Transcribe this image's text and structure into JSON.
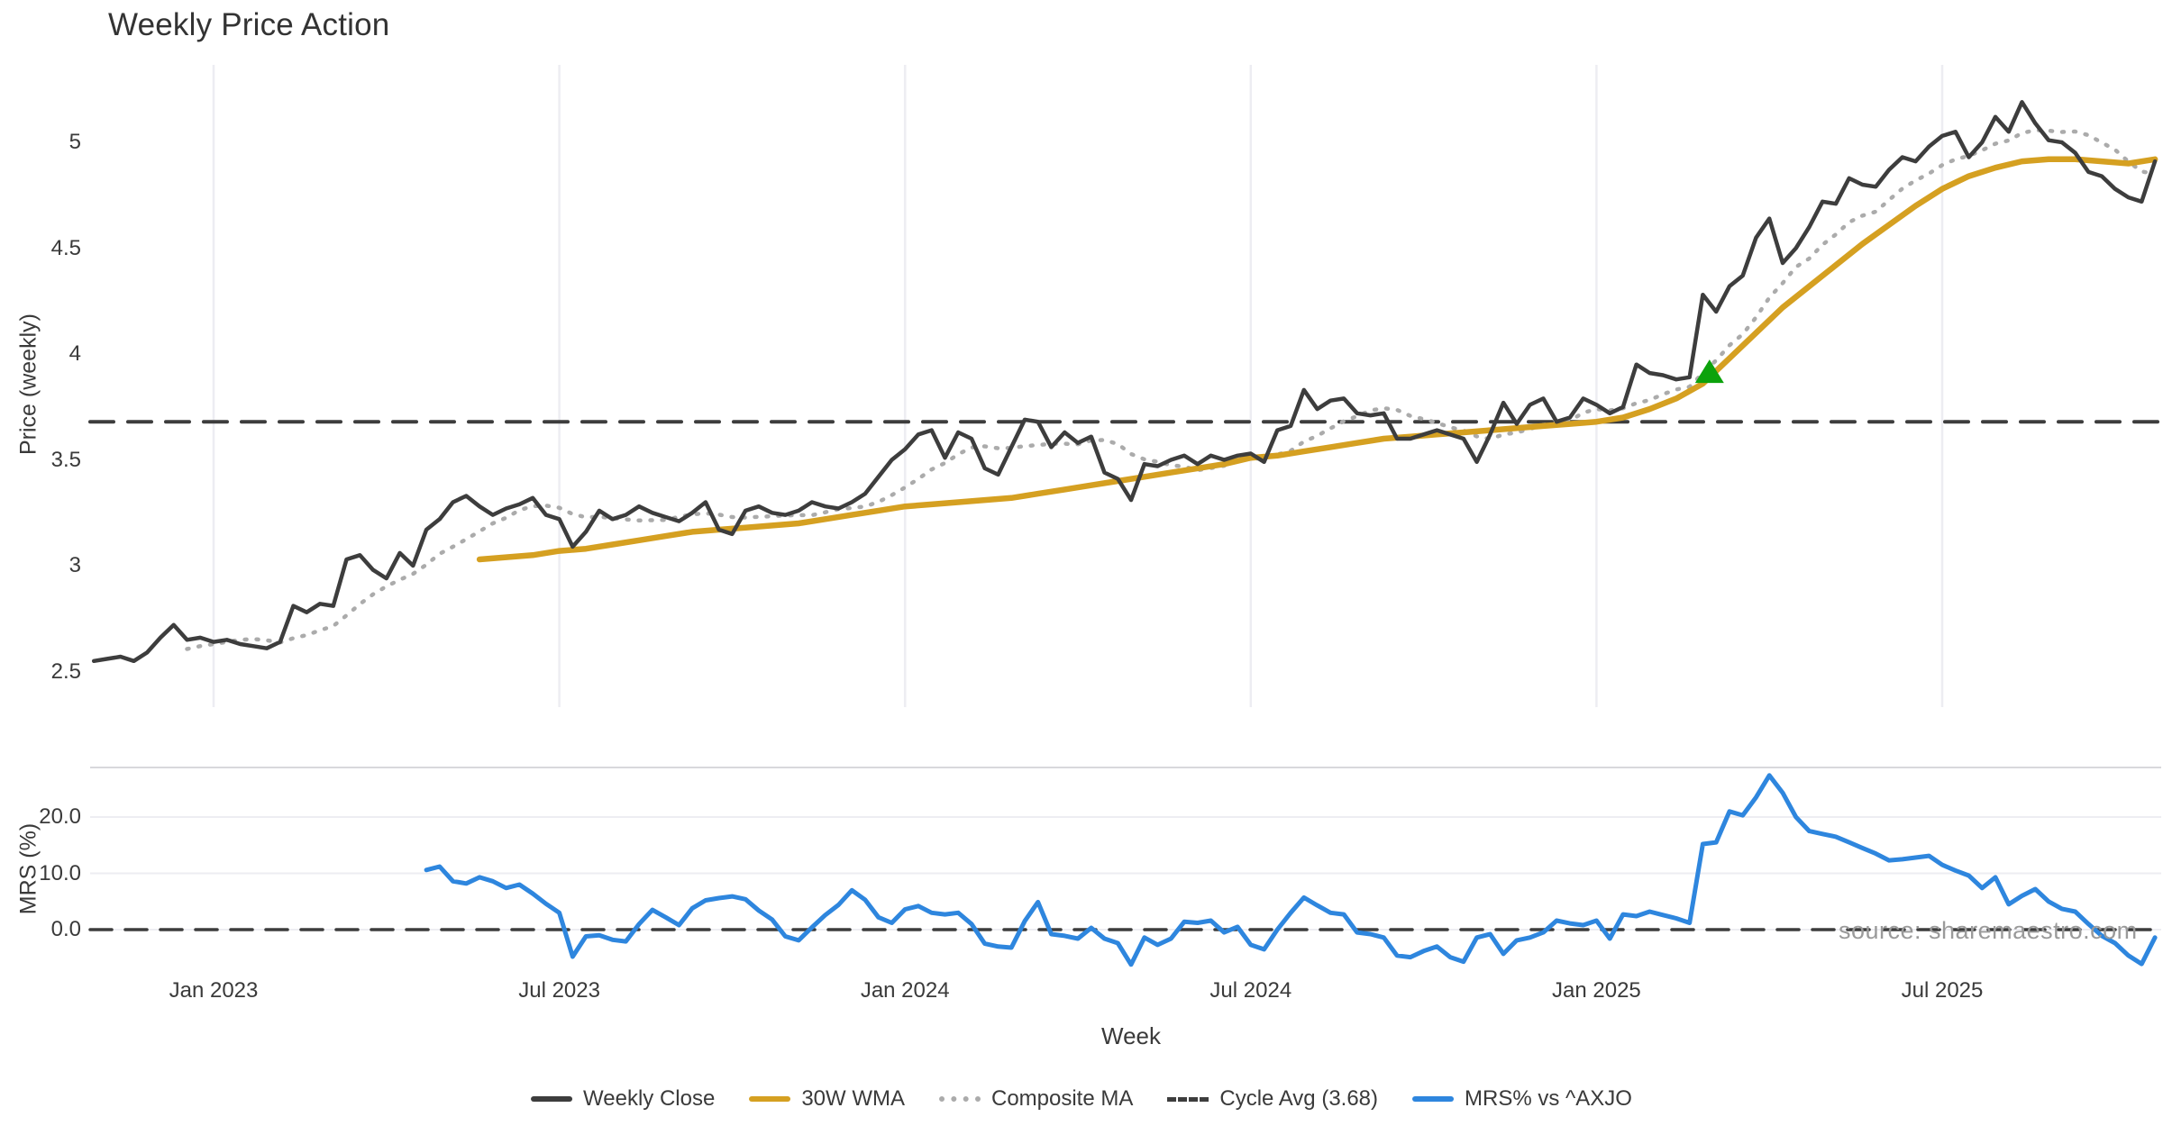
{
  "title": "Weekly Price Action",
  "watermark": "source: sharemaestro.com",
  "axes": {
    "price_label": "Price (weekly)",
    "mrs_label": "MRS (%)",
    "x_label": "Week",
    "price_ticks": [
      "5",
      "4.5",
      "4",
      "3.5",
      "3",
      "2.5"
    ],
    "price_tick_values": [
      5,
      4.5,
      4,
      3.5,
      3,
      2.5
    ],
    "mrs_ticks": [
      "20.0",
      "10.0",
      "0.0"
    ],
    "mrs_tick_values": [
      20,
      10,
      0
    ],
    "x_ticks": [
      "Jan 2023",
      "Jul 2023",
      "Jan 2024",
      "Jul 2024",
      "Jan 2025",
      "Jul 2025"
    ],
    "x_tick_week_indexes": [
      9,
      35,
      61,
      87,
      113,
      139
    ]
  },
  "legend": [
    {
      "label": "Weekly Close",
      "swatch": "solid",
      "color": "#3d3d3d"
    },
    {
      "label": "30W WMA",
      "swatch": "solid",
      "color": "#d5a021"
    },
    {
      "label": "Composite MA",
      "swatch": "dotted",
      "color": "#ababab"
    },
    {
      "label": "Cycle Avg (3.68)",
      "swatch": "dashed",
      "color": "#3d3d3d"
    },
    {
      "label": "MRS% vs ^AXJO",
      "swatch": "solid",
      "color": "#2e86de"
    }
  ],
  "colors": {
    "weekly_close": "#3d3d3d",
    "wma30": "#d5a021",
    "composite_ma": "#ababab",
    "cycle_avg": "#3d3d3d",
    "mrs": "#2e86de",
    "marker_green": "#0ca20c",
    "gridline": "#ededf2",
    "panel_border": "#d8d8dc",
    "text": "#3a3a3a",
    "watermark": "#9a9a9a"
  },
  "chart_data": {
    "type": "line",
    "title": "Weekly Price Action",
    "xlabel": "Week",
    "panels": [
      {
        "name": "price",
        "ylabel": "Price (weekly)",
        "ylim": [
          2.3,
          5.4
        ],
        "grid": "vertical-only"
      },
      {
        "name": "mrs",
        "ylabel": "MRS (%)",
        "ylim": [
          -7,
          29
        ],
        "grid": "horizontal-only"
      }
    ],
    "x_axis": {
      "unit": "week",
      "tick_labels": [
        "Jan 2023",
        "Jul 2023",
        "Jan 2024",
        "Jul 2024",
        "Jan 2025",
        "Jul 2025"
      ],
      "tick_week_indexes": [
        9,
        35,
        61,
        87,
        113,
        139
      ]
    },
    "series": [
      {
        "name": "Weekly Close",
        "panel": "price",
        "color": "#3d3d3d",
        "style": "solid",
        "start_week": 0,
        "step": 1,
        "values": [
          2.55,
          2.56,
          2.57,
          2.55,
          2.59,
          2.66,
          2.72,
          2.65,
          2.66,
          2.64,
          2.65,
          2.63,
          2.62,
          2.61,
          2.64,
          2.81,
          2.78,
          2.82,
          2.81,
          3.03,
          3.05,
          2.98,
          2.94,
          3.06,
          3.0,
          3.17,
          3.22,
          3.3,
          3.33,
          3.28,
          3.24,
          3.27,
          3.29,
          3.32,
          3.24,
          3.22,
          3.09,
          3.16,
          3.26,
          3.22,
          3.24,
          3.28,
          3.25,
          3.23,
          3.21,
          3.25,
          3.3,
          3.17,
          3.15,
          3.26,
          3.28,
          3.25,
          3.24,
          3.26,
          3.3,
          3.28,
          3.27,
          3.3,
          3.34,
          3.42,
          3.5,
          3.55,
          3.62,
          3.64,
          3.51,
          3.63,
          3.6,
          3.46,
          3.43,
          3.56,
          3.69,
          3.68,
          3.56,
          3.63,
          3.58,
          3.61,
          3.44,
          3.41,
          3.31,
          3.48,
          3.47,
          3.5,
          3.52,
          3.48,
          3.52,
          3.5,
          3.52,
          3.53,
          3.49,
          3.64,
          3.66,
          3.83,
          3.74,
          3.78,
          3.79,
          3.72,
          3.71,
          3.72,
          3.6,
          3.6,
          3.62,
          3.64,
          3.62,
          3.6,
          3.49,
          3.62,
          3.77,
          3.67,
          3.76,
          3.79,
          3.68,
          3.7,
          3.79,
          3.76,
          3.72,
          3.75,
          3.95,
          3.91,
          3.9,
          3.88,
          3.89,
          4.28,
          4.2,
          4.32,
          4.37,
          4.55,
          4.64,
          4.43,
          4.5,
          4.6,
          4.72,
          4.71,
          4.83,
          4.8,
          4.79,
          4.87,
          4.93,
          4.91,
          4.98,
          5.03,
          5.05,
          4.93,
          5.0,
          5.12,
          5.05,
          5.19,
          5.09,
          5.01,
          5.0,
          4.95,
          4.86,
          4.84,
          4.78,
          4.74,
          4.72,
          4.91
        ]
      },
      {
        "name": "30W WMA",
        "panel": "price",
        "color": "#d5a021",
        "style": "solid",
        "start_week": 29,
        "step": 2,
        "values": [
          3.03,
          3.04,
          3.05,
          3.07,
          3.08,
          3.1,
          3.12,
          3.14,
          3.16,
          3.17,
          3.18,
          3.19,
          3.2,
          3.22,
          3.24,
          3.26,
          3.28,
          3.29,
          3.3,
          3.31,
          3.32,
          3.34,
          3.36,
          3.38,
          3.4,
          3.42,
          3.44,
          3.46,
          3.48,
          3.51,
          3.52,
          3.54,
          3.56,
          3.58,
          3.6,
          3.61,
          3.62,
          3.63,
          3.64,
          3.65,
          3.66,
          3.67,
          3.68,
          3.7,
          3.74,
          3.79,
          3.86,
          3.98,
          4.1,
          4.22,
          4.32,
          4.42,
          4.52,
          4.61,
          4.7,
          4.78,
          4.84,
          4.88,
          4.91,
          4.92,
          4.92,
          4.91,
          4.9,
          4.92
        ]
      },
      {
        "name": "Composite MA",
        "panel": "price",
        "color": "#ababab",
        "style": "dotted",
        "derived": "8-week trailing mean of Weekly Close",
        "start_week": 7,
        "step": 1,
        "values": []
      },
      {
        "name": "Cycle Avg (3.68)",
        "panel": "price",
        "color": "#3d3d3d",
        "style": "dashed",
        "constant_value": 3.68
      },
      {
        "name": "MRS% vs ^AXJO",
        "panel": "mrs",
        "color": "#2e86de",
        "style": "solid",
        "start_week": 25,
        "step": 1,
        "values": [
          10.6,
          11.2,
          8.6,
          8.2,
          9.3,
          8.6,
          7.4,
          8.0,
          6.4,
          4.6,
          3.0,
          -4.8,
          -1.2,
          -1.0,
          -1.8,
          -2.1,
          1.0,
          3.5,
          2.2,
          0.8,
          3.8,
          5.2,
          5.6,
          5.9,
          5.4,
          3.4,
          1.8,
          -1.2,
          -1.9,
          0.4,
          2.6,
          4.4,
          7.0,
          5.3,
          2.2,
          1.2,
          3.6,
          4.2,
          3.0,
          2.7,
          3.0,
          1.0,
          -2.5,
          -3.0,
          -3.2,
          1.5,
          4.9,
          -0.8,
          -1.1,
          -1.6,
          0.3,
          -1.6,
          -2.4,
          -6.2,
          -1.4,
          -2.7,
          -1.6,
          1.4,
          1.2,
          1.6,
          -0.5,
          0.5,
          -2.7,
          -3.5,
          0.0,
          3.0,
          5.7,
          4.3,
          3.0,
          2.7,
          -0.5,
          -0.8,
          -1.4,
          -4.6,
          -4.9,
          -3.8,
          -3.0,
          -4.9,
          -5.7,
          -1.4,
          -0.8,
          -4.3,
          -1.9,
          -1.4,
          -0.5,
          1.6,
          1.1,
          0.8,
          1.6,
          -1.6,
          2.7,
          2.4,
          3.2,
          2.6,
          2.0,
          1.2,
          15.2,
          15.5,
          21.0,
          20.3,
          23.5,
          27.4,
          24.3,
          20.0,
          17.5,
          17.0,
          16.5,
          15.5,
          14.5,
          13.5,
          12.3,
          12.5,
          12.8,
          13.1,
          11.5,
          10.5,
          9.6,
          7.4,
          9.3,
          4.5,
          6.0,
          7.2,
          5.0,
          3.7,
          3.2,
          1.0,
          -1.1,
          -2.4,
          -4.6,
          -6.1,
          -1.4
        ]
      }
    ],
    "marker": {
      "name": "buy-signal-triangle",
      "shape": "triangle-up",
      "color": "#0ca20c",
      "week": 121.5,
      "value": 3.91
    },
    "cycle_avg_value": 3.68
  }
}
